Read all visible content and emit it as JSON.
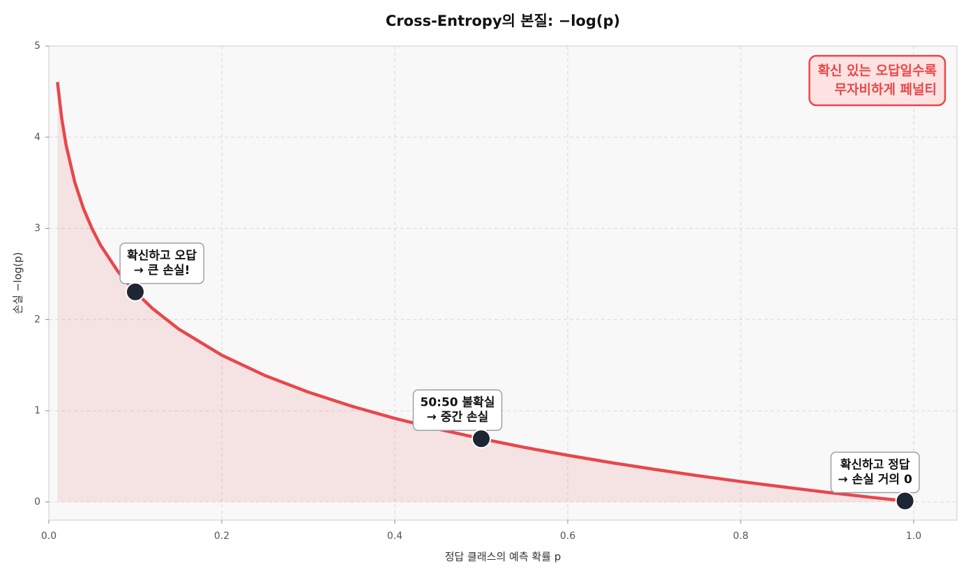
{
  "chart_data": {
    "type": "line",
    "title": "Cross-Entropy의 본질: −log(p)",
    "xlabel": "정답 클래스의 예측 확률 p",
    "ylabel": "손실 −log(p)",
    "xlim": [
      0,
      1.05
    ],
    "ylim": [
      -0.2,
      5
    ],
    "xticks": [
      {
        "value": 0,
        "label": "0.0"
      },
      0.2,
      0.4,
      0.6,
      0.8,
      {
        "value": 1,
        "label": "1.0"
      }
    ],
    "yticks": [
      0,
      1,
      2,
      3,
      4,
      5
    ],
    "grid": true,
    "x": [
      0.01,
      0.015,
      0.02,
      0.03,
      0.04,
      0.05,
      0.06,
      0.08,
      0.1,
      0.12,
      0.15,
      0.2,
      0.25,
      0.3,
      0.35,
      0.4,
      0.45,
      0.5,
      0.55,
      0.6,
      0.65,
      0.7,
      0.75,
      0.8,
      0.85,
      0.9,
      0.95,
      0.99
    ],
    "series": [
      {
        "color": "#e8474a",
        "values": [
          4.605,
          4.2,
          3.912,
          3.507,
          3.219,
          2.996,
          2.813,
          2.526,
          2.303,
          2.12,
          1.897,
          1.609,
          1.386,
          1.204,
          1.05,
          0.916,
          0.799,
          0.693,
          0.598,
          0.511,
          0.431,
          0.357,
          0.288,
          0.223,
          0.163,
          0.105,
          0.051,
          0.01
        ]
      }
    ],
    "markers": {
      "color": "#1e2533",
      "x": [
        0.1,
        0.5,
        0.99
      ],
      "values": [
        2.303,
        0.693,
        0.01
      ],
      "labels": [
        [
          "확신하고 오답",
          "→ 큰 손실!"
        ],
        [
          "50:50 불확실",
          "→ 중간 손실"
        ],
        [
          "확신하고 정답",
          "→ 손실 거의 0"
        ]
      ]
    },
    "note": [
      "확신 있는 오답일수록",
      "무자비하게 페널티"
    ],
    "note_color": "#e8474a"
  }
}
